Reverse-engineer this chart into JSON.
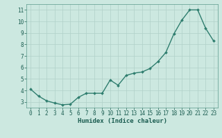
{
  "x": [
    0,
    1,
    2,
    3,
    4,
    5,
    6,
    7,
    8,
    9,
    10,
    11,
    12,
    13,
    14,
    15,
    16,
    17,
    18,
    19,
    20,
    21,
    22,
    23
  ],
  "y": [
    4.1,
    3.5,
    3.1,
    2.9,
    2.75,
    2.8,
    3.4,
    3.75,
    3.75,
    3.75,
    4.9,
    4.45,
    5.3,
    5.5,
    5.6,
    5.9,
    6.5,
    7.3,
    8.9,
    10.1,
    11.0,
    11.0,
    9.4,
    8.3
  ],
  "line_color": "#2e7d6e",
  "marker": "D",
  "marker_size": 2.0,
  "bg_color": "#cce8e0",
  "grid_color": "#b0d0c8",
  "xlabel": "Humidex (Indice chaleur)",
  "xlim": [
    -0.5,
    23.5
  ],
  "ylim": [
    2.5,
    11.5
  ],
  "yticks": [
    3,
    4,
    5,
    6,
    7,
    8,
    9,
    10,
    11
  ],
  "xticks": [
    0,
    1,
    2,
    3,
    4,
    5,
    6,
    7,
    8,
    9,
    10,
    11,
    12,
    13,
    14,
    15,
    16,
    17,
    18,
    19,
    20,
    21,
    22,
    23
  ],
  "tick_fontsize": 5.5,
  "xlabel_fontsize": 6.5,
  "line_width": 1.0
}
